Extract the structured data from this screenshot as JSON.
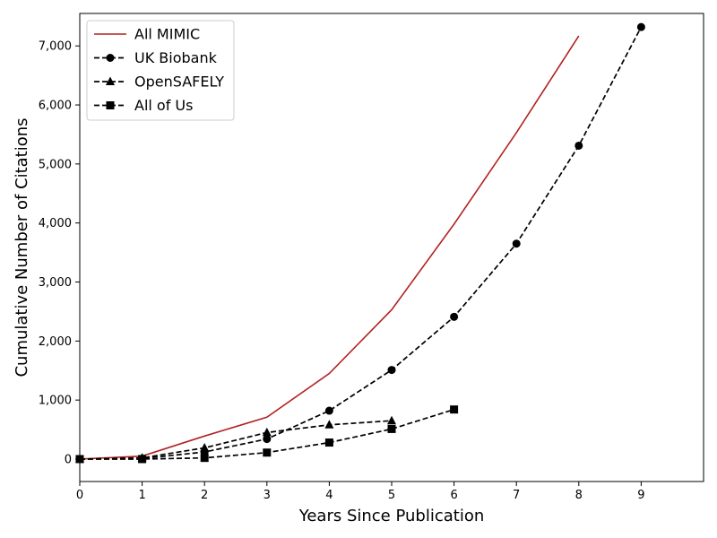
{
  "chart_data": {
    "type": "line",
    "xlabel": "Years Since Publication",
    "ylabel": "Cumulative Number of Citations",
    "xlim": [
      0,
      10
    ],
    "ylim": [
      -380,
      7550
    ],
    "xticks": [
      0,
      1,
      2,
      3,
      4,
      5,
      6,
      7,
      8,
      9
    ],
    "yticks": [
      0,
      1000,
      2000,
      3000,
      4000,
      5000,
      6000,
      7000
    ],
    "ytick_labels": [
      "0",
      "1,000",
      "2,000",
      "3,000",
      "4,000",
      "5,000",
      "6,000",
      "7,000"
    ],
    "grid": false,
    "legend_position": "top-left",
    "series": [
      {
        "name": "All MIMIC",
        "color": "#b22222",
        "line_style": "solid",
        "marker": "none",
        "x": [
          0,
          1,
          2,
          3,
          4,
          5,
          6,
          7,
          8
        ],
        "values": [
          0,
          50,
          390,
          710,
          1450,
          2530,
          3980,
          5530,
          7170
        ]
      },
      {
        "name": "UK Biobank",
        "color": "#000000",
        "line_style": "dashed",
        "marker": "circle",
        "x": [
          0,
          1,
          2,
          3,
          4,
          5,
          6,
          7,
          8,
          9
        ],
        "values": [
          0,
          10,
          120,
          340,
          820,
          1510,
          2410,
          3650,
          5310,
          7320
        ]
      },
      {
        "name": "OpenSAFELY",
        "color": "#000000",
        "line_style": "dashed",
        "marker": "triangle",
        "x": [
          0,
          1,
          2,
          3,
          4,
          5
        ],
        "values": [
          0,
          20,
          190,
          450,
          580,
          650
        ]
      },
      {
        "name": "All of Us",
        "color": "#000000",
        "line_style": "dashed",
        "marker": "square",
        "x": [
          0,
          1,
          2,
          3,
          4,
          5,
          6
        ],
        "values": [
          0,
          0,
          20,
          110,
          280,
          510,
          840
        ]
      }
    ]
  }
}
